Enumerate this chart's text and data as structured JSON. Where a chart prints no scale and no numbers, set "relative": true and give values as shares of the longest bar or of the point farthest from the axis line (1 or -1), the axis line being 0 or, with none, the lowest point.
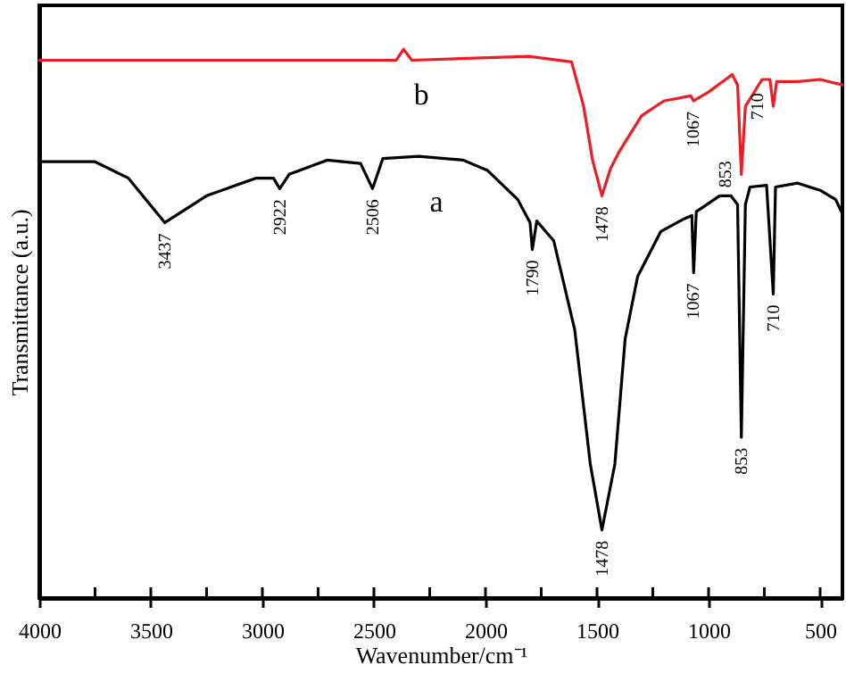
{
  "chart_data": {
    "type": "line",
    "relative": true,
    "xlabel": "Wavenumber/cm⁻¹",
    "ylabel": "Transmittance (a.u.)",
    "xlim": [
      4000,
      400
    ],
    "xticks": [
      4000,
      {
        "value": 3750,
        "label": null
      },
      3500,
      {
        "value": 3250,
        "label": null
      },
      3000,
      {
        "value": 2750,
        "label": null
      },
      2500,
      {
        "value": 2250,
        "label": null
      },
      2000,
      {
        "value": 1750,
        "label": null
      },
      1500,
      {
        "value": 1250,
        "label": null
      },
      1000,
      {
        "value": 750,
        "label": null
      },
      500
    ],
    "grid": false,
    "line_style": "solid",
    "marker": "none",
    "series": [
      {
        "name": "a",
        "color": "#000000",
        "x": [
          4000,
          3750,
          3600,
          3437,
          3250,
          3030,
          2950,
          2922,
          2880,
          2710,
          2560,
          2506,
          2460,
          2300,
          2100,
          1990,
          1855,
          1800,
          1790,
          1770,
          1694,
          1600,
          1530,
          1478,
          1420,
          1374,
          1318,
          1214,
          1110,
          1075,
          1067,
          1055,
          950,
          900,
          870,
          853,
          835,
          814,
          740,
          710,
          700,
          600,
          500,
          430,
          400
        ],
        "values": [
          0.795,
          0.795,
          0.765,
          0.684,
          0.733,
          0.765,
          0.765,
          0.746,
          0.772,
          0.798,
          0.792,
          0.746,
          0.801,
          0.805,
          0.798,
          0.779,
          0.726,
          0.684,
          0.635,
          0.687,
          0.651,
          0.489,
          0.244,
          0.124,
          0.244,
          0.472,
          0.586,
          0.668,
          0.691,
          0.697,
          0.593,
          0.704,
          0.733,
          0.733,
          0.717,
          0.293,
          0.717,
          0.749,
          0.752,
          0.554,
          0.749,
          0.756,
          0.743,
          0.726,
          0.7
        ]
      },
      {
        "name": "b",
        "color": "#ee1c25",
        "x": [
          4000,
          2400,
          2367,
          2330,
          1806,
          1614,
          1560,
          1520,
          1478,
          1440,
          1400,
          1300,
          1200,
          1080,
          1067,
          1000,
          894,
          870,
          853,
          835,
          760,
          725,
          710,
          695,
          600,
          500,
          400
        ],
        "values": [
          0.98,
          0.98,
          1.0,
          0.98,
          0.987,
          0.977,
          0.896,
          0.798,
          0.733,
          0.782,
          0.814,
          0.879,
          0.906,
          0.915,
          0.906,
          0.922,
          0.954,
          0.935,
          0.772,
          0.896,
          0.945,
          0.945,
          0.896,
          0.941,
          0.941,
          0.945,
          0.935
        ]
      }
    ],
    "annotations": [
      {
        "text": "3437",
        "x": 3437,
        "y": 0.684
      },
      {
        "text": "2922",
        "x": 2922,
        "y": 0.746
      },
      {
        "text": "2506",
        "x": 2506,
        "y": 0.746
      },
      {
        "text": "1790",
        "x": 1790,
        "y": 0.635
      },
      {
        "text": "1478",
        "x": 1478,
        "y": 0.124
      },
      {
        "text": "1067",
        "x": 1067,
        "y": 0.593
      },
      {
        "text": "853",
        "x": 853,
        "y": 0.293
      },
      {
        "text": "710",
        "x": 710,
        "y": 0.554
      },
      {
        "text": "1478",
        "x": 1478,
        "y": 0.733
      },
      {
        "text": "1067",
        "x": 1067,
        "y": 0.906
      },
      {
        "text": "853",
        "x": 853,
        "y": 0.772
      },
      {
        "text": "710",
        "x": 710,
        "y": 0.896
      }
    ]
  }
}
